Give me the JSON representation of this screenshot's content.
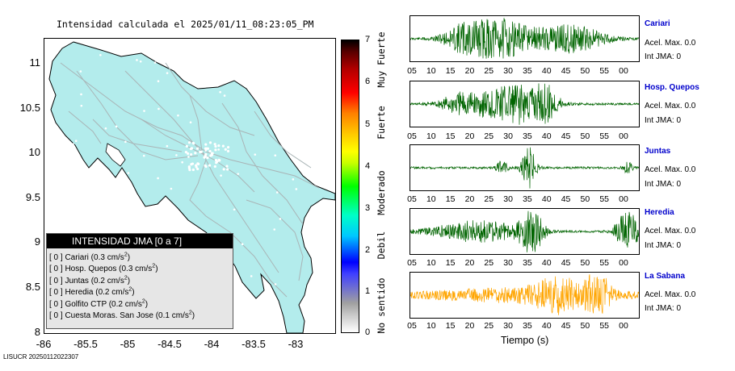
{
  "map": {
    "title": "Intensidad calculada el 2025/01/11_08:23:05_PM",
    "lat_ticks": [
      "11",
      "10.5",
      "10",
      "9.5",
      "9",
      "8.5",
      "8"
    ],
    "lon_ticks": [
      "-86",
      "-85.5",
      "-85",
      "-84.5",
      "-84",
      "-83.5",
      "-83"
    ],
    "land_color": "#b3ecec",
    "road_color": "#a9b4b6"
  },
  "legend": {
    "title": "INTENSIDAD JMA [0 a 7]",
    "items": [
      {
        "text": "[ 0 ]  Cariari (0.3 cm/s",
        "sup": "2",
        "close": ")"
      },
      {
        "text": "[ 0 ]  Hosp. Quepos (0.3 cm/s",
        "sup": "2",
        "close": ")"
      },
      {
        "text": "[ 0 ]  Juntas (0.2 cm/s",
        "sup": "2",
        "close": ")"
      },
      {
        "text": "[ 0 ]  Heredia (0.2 cm/s",
        "sup": "2",
        "close": ")"
      },
      {
        "text": "[ 0 ]  Golfito CTP (0.2 cm/s",
        "sup": "2",
        "close": ")"
      },
      {
        "text": "[ 0 ]  Cuesta Moras. San Jose (0.1 cm/s",
        "sup": "2",
        "close": ")"
      }
    ]
  },
  "colorbar": {
    "ticks": [
      "7",
      "6",
      "5",
      "4",
      "3",
      "2",
      "1",
      "0"
    ],
    "labels": [
      "Muy Fuerte",
      "Fuerte",
      "Moderado",
      "Debil",
      "No sentido"
    ]
  },
  "seismograms": {
    "time_ticks": [
      "05",
      "10",
      "15",
      "20",
      "25",
      "30",
      "35",
      "40",
      "45",
      "50",
      "55",
      "00"
    ],
    "xlabel": "Tiempo (s)",
    "stations": [
      {
        "name": "Cariari",
        "accel": "Acel. Max. 0.0",
        "jma": "Int JMA: 0",
        "color": "#006400"
      },
      {
        "name": "Hosp. Quepos",
        "accel": "Acel. Max. 0.0",
        "jma": "Int JMA: 0",
        "color": "#006400"
      },
      {
        "name": "Juntas",
        "accel": "Acel. Max. 0.0",
        "jma": "Int JMA: 0",
        "color": "#006400"
      },
      {
        "name": "Heredia",
        "accel": "Acel. Max. 0.0",
        "jma": "Int JMA: 0",
        "color": "#006400"
      },
      {
        "name": "La Sabana",
        "accel": "Acel. Max. 0.0",
        "jma": "Int JMA: 0",
        "color": "#ffa500"
      }
    ]
  },
  "footer": {
    "id": "LISUCR 20250112022307"
  }
}
